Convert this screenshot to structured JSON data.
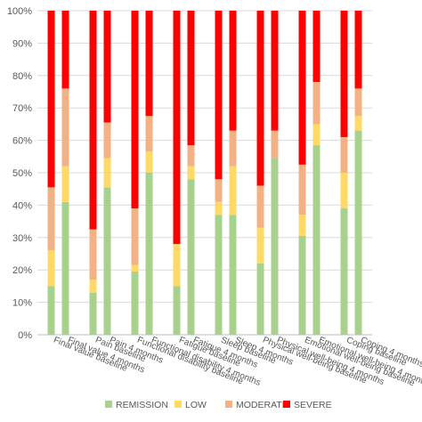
{
  "chart_data": {
    "type": "bar",
    "stacked": true,
    "percent": true,
    "title": "",
    "xlabel": "",
    "ylabel": "",
    "ylim": [
      0,
      100
    ],
    "y_ticks": [
      "0%",
      "10%",
      "20%",
      "30%",
      "40%",
      "50%",
      "60%",
      "70%",
      "80%",
      "90%",
      "100%"
    ],
    "grid": true,
    "legend_position": "bottom",
    "categories": [
      "Final value baseline",
      "Final value 4 months",
      "Pain baseline",
      "Pain 4 months",
      "Functional disability baseline",
      "Functional disability 4 months",
      "Fatigue baseline",
      "Fatigue 4 months",
      "Sleep baseline",
      "Sleep 4 months",
      "Physical well-being baseline",
      "Physical well-being 4 months",
      "Emotional well-being baseline",
      "Emotional well-being 4 months",
      "Coping baseline",
      "Coping 4 months"
    ],
    "series": [
      {
        "name": "REMISSION",
        "color": "#a9d18e",
        "values": [
          15,
          41,
          13,
          45.5,
          19.5,
          50,
          15,
          48,
          37,
          37,
          22,
          54.5,
          30.5,
          58.5,
          39,
          63
        ]
      },
      {
        "name": "LOW",
        "color": "#ffd966",
        "values": [
          11,
          11,
          4,
          9,
          2,
          6.5,
          13,
          4,
          4,
          15,
          11,
          0,
          6.5,
          6.5,
          11,
          4.5
        ]
      },
      {
        "name": "MODERATE",
        "color": "#f4b183",
        "values": [
          19.5,
          24,
          15.5,
          11,
          17.5,
          11,
          0,
          6.5,
          7,
          11,
          13,
          8.5,
          15.5,
          13,
          11,
          8.5
        ]
      },
      {
        "name": "SEVERE",
        "color": "#ff0000",
        "values": [
          54.5,
          24,
          67.5,
          34.5,
          61,
          32.5,
          72,
          41.5,
          52,
          37,
          54,
          37,
          47.5,
          22,
          39,
          24
        ]
      }
    ]
  }
}
